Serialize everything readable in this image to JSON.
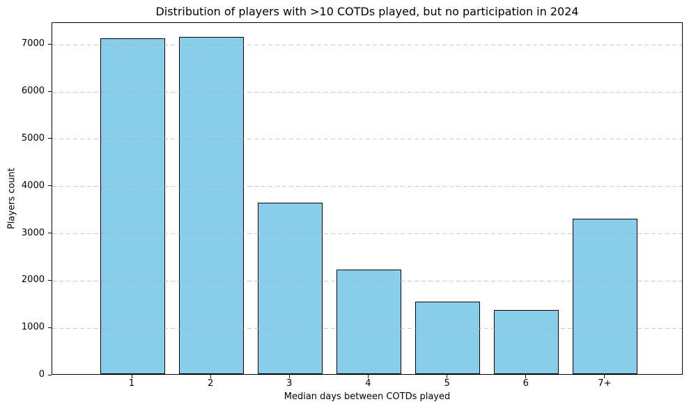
{
  "chart_data": {
    "type": "bar",
    "title": "Distribution of players with >10 COTDs played, but no participation in 2024",
    "xlabel": "Median days between COTDs played",
    "ylabel": "Players count",
    "categories": [
      "1",
      "2",
      "3",
      "4",
      "5",
      "6",
      "7+"
    ],
    "values": [
      7100,
      7140,
      3620,
      2210,
      1530,
      1350,
      3290
    ],
    "yticks": [
      0,
      1000,
      2000,
      3000,
      4000,
      5000,
      6000,
      7000
    ],
    "ylim": [
      0,
      7460
    ],
    "grid": {
      "axis": "y",
      "linestyle": "dashed",
      "color": "#b0b0b0",
      "drawn_above_bars": true
    },
    "legend": "none",
    "colors": {
      "bar_fill": "#87CEEB",
      "bar_edge": "#000000",
      "axes": "#000000",
      "background": "#ffffff"
    }
  }
}
